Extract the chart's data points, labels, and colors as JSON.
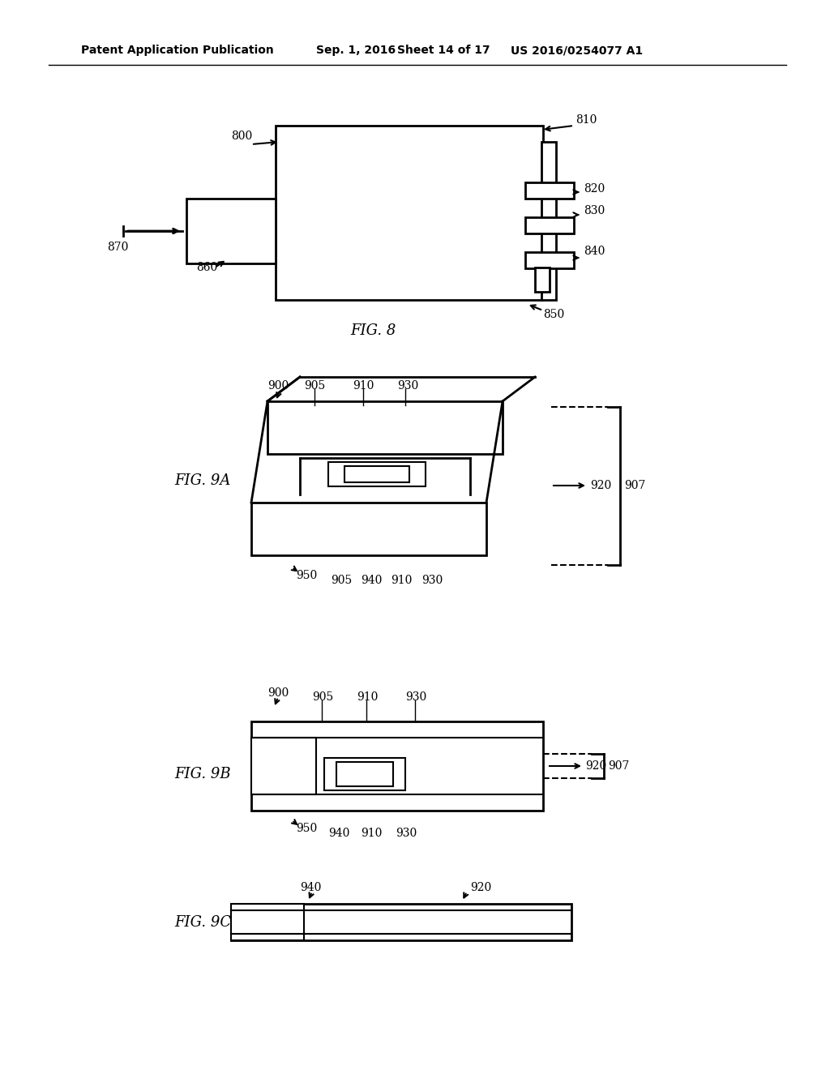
{
  "background_color": "#ffffff",
  "header_text": "Patent Application Publication",
  "header_date": "Sep. 1, 2016",
  "header_sheet": "Sheet 14 of 17",
  "header_patent": "US 2016/0254077 A1",
  "fig8_label": "FIG. 8",
  "fig9a_label": "FIG. 9A",
  "fig9b_label": "FIG. 9B",
  "fig9c_label": "FIG. 9C"
}
